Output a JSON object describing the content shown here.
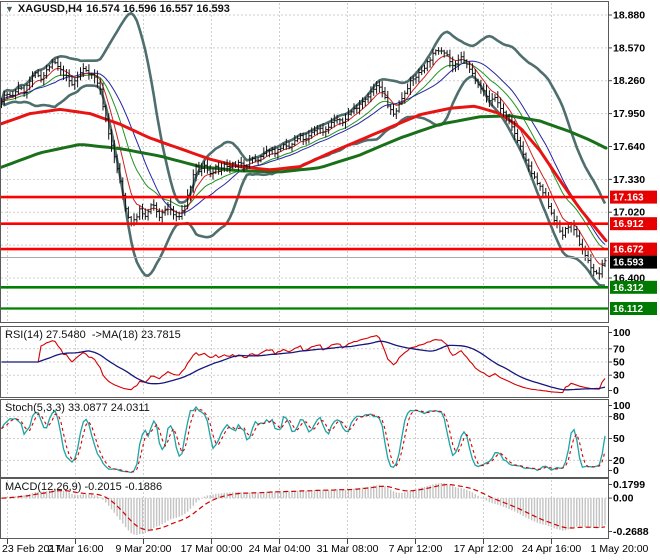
{
  "window": {
    "title": "XAGUSD,H4",
    "quotes": "16.574 16.596 16.557 16.593"
  },
  "colors": {
    "bg": "#ffffff",
    "grid": "#cfcfcf",
    "bar": "#141414",
    "bb": "#4f6e6e",
    "thin_blue": "#2626a6",
    "thin_green": "#22921f",
    "thin_red": "#d02020",
    "slow_red": "#e81414",
    "slow_green": "#1a701a",
    "res_line": "#ff0000",
    "sup_line": "#008000",
    "tag_red": "#e60000",
    "tag_green": "#007a00",
    "tag_black": "#000000",
    "cur_line": "#a9a9a9",
    "rsi": "#d40000",
    "rsi_ma": "#16167d",
    "stoch_k": "#1fa3a3",
    "stoch_d": "#d40000",
    "macd_hist": "#c3c3c3",
    "macd_sig": "#d40000",
    "text": "#000000",
    "border": "#5a5a5a"
  },
  "chart_data": {
    "type": "ohlc-bar-multi-panel",
    "symbol": "XAGUSD",
    "timeframe": "H4",
    "price_panel": {
      "bars": {
        "count": 215,
        "spacing_px": 2.82
      },
      "bollinger": {
        "period": 20,
        "deviation": 2.1
      },
      "close_keypoints": [
        [
          0,
          18.06
        ],
        [
          6,
          18.14
        ],
        [
          12,
          18.1
        ],
        [
          18,
          18.2
        ],
        [
          24,
          18.16
        ],
        [
          30,
          18.26
        ],
        [
          36,
          18.33
        ],
        [
          42,
          18.28
        ],
        [
          48,
          18.38
        ],
        [
          54,
          18.44
        ],
        [
          60,
          18.36
        ],
        [
          66,
          18.3
        ],
        [
          72,
          18.22
        ],
        [
          78,
          18.3
        ],
        [
          84,
          18.38
        ],
        [
          90,
          18.33
        ],
        [
          96,
          18.28
        ],
        [
          100,
          18.18
        ],
        [
          104,
          17.98
        ],
        [
          108,
          17.8
        ],
        [
          112,
          17.62
        ],
        [
          116,
          17.48
        ],
        [
          120,
          17.3
        ],
        [
          124,
          17.12
        ],
        [
          128,
          16.98
        ],
        [
          132,
          16.9
        ],
        [
          136,
          16.97
        ],
        [
          140,
          17.05
        ],
        [
          144,
          16.96
        ],
        [
          148,
          17.02
        ],
        [
          152,
          17.1
        ],
        [
          156,
          17.04
        ],
        [
          160,
          16.97
        ],
        [
          164,
          17.03
        ],
        [
          168,
          17.09
        ],
        [
          172,
          17.02
        ],
        [
          176,
          16.96
        ],
        [
          180,
          17.0
        ],
        [
          184,
          17.06
        ],
        [
          188,
          17.18
        ],
        [
          192,
          17.32
        ],
        [
          196,
          17.44
        ],
        [
          200,
          17.4
        ],
        [
          204,
          17.46
        ],
        [
          208,
          17.42
        ],
        [
          212,
          17.38
        ],
        [
          216,
          17.44
        ],
        [
          220,
          17.4
        ],
        [
          224,
          17.46
        ],
        [
          228,
          17.43
        ],
        [
          232,
          17.48
        ],
        [
          236,
          17.44
        ],
        [
          240,
          17.5
        ],
        [
          246,
          17.46
        ],
        [
          252,
          17.53
        ],
        [
          258,
          17.5
        ],
        [
          264,
          17.57
        ],
        [
          270,
          17.62
        ],
        [
          276,
          17.58
        ],
        [
          282,
          17.65
        ],
        [
          288,
          17.62
        ],
        [
          294,
          17.68
        ],
        [
          300,
          17.73
        ],
        [
          306,
          17.7
        ],
        [
          312,
          17.77
        ],
        [
          318,
          17.82
        ],
        [
          324,
          17.78
        ],
        [
          330,
          17.85
        ],
        [
          336,
          17.9
        ],
        [
          342,
          17.86
        ],
        [
          348,
          17.94
        ],
        [
          354,
          17.99
        ],
        [
          360,
          18.05
        ],
        [
          366,
          18.1
        ],
        [
          372,
          18.16
        ],
        [
          378,
          18.22
        ],
        [
          384,
          18.12
        ],
        [
          390,
          17.98
        ],
        [
          394,
          17.94
        ],
        [
          398,
          18.02
        ],
        [
          402,
          18.1
        ],
        [
          406,
          18.18
        ],
        [
          410,
          18.24
        ],
        [
          416,
          18.3
        ],
        [
          422,
          18.36
        ],
        [
          428,
          18.44
        ],
        [
          434,
          18.52
        ],
        [
          440,
          18.56
        ],
        [
          446,
          18.53
        ],
        [
          450,
          18.44
        ],
        [
          454,
          18.38
        ],
        [
          458,
          18.44
        ],
        [
          462,
          18.49
        ],
        [
          466,
          18.42
        ],
        [
          470,
          18.36
        ],
        [
          474,
          18.3
        ],
        [
          478,
          18.24
        ],
        [
          482,
          18.18
        ],
        [
          486,
          18.12
        ],
        [
          490,
          18.06
        ],
        [
          494,
          18.12
        ],
        [
          498,
          18.05
        ],
        [
          502,
          17.98
        ],
        [
          506,
          17.92
        ],
        [
          510,
          17.85
        ],
        [
          514,
          17.78
        ],
        [
          518,
          17.7
        ],
        [
          522,
          17.6
        ],
        [
          526,
          17.5
        ],
        [
          530,
          17.42
        ],
        [
          534,
          17.35
        ],
        [
          538,
          17.28
        ],
        [
          542,
          17.22
        ],
        [
          546,
          17.15
        ],
        [
          550,
          17.05
        ],
        [
          554,
          16.96
        ],
        [
          558,
          16.88
        ],
        [
          562,
          16.8
        ],
        [
          566,
          16.86
        ],
        [
          570,
          16.92
        ],
        [
          574,
          16.84
        ],
        [
          578,
          16.76
        ],
        [
          582,
          16.68
        ],
        [
          586,
          16.6
        ],
        [
          590,
          16.52
        ],
        [
          594,
          16.46
        ],
        [
          598,
          16.42
        ],
        [
          602,
          16.5
        ],
        [
          605,
          16.57
        ],
        [
          607,
          16.59
        ]
      ],
      "ma_slow_red_keypoints": [
        [
          0,
          17.85
        ],
        [
          30,
          17.95
        ],
        [
          60,
          17.99
        ],
        [
          90,
          17.95
        ],
        [
          120,
          17.85
        ],
        [
          150,
          17.72
        ],
        [
          180,
          17.62
        ],
        [
          210,
          17.52
        ],
        [
          240,
          17.45
        ],
        [
          270,
          17.42
        ],
        [
          300,
          17.45
        ],
        [
          330,
          17.58
        ],
        [
          360,
          17.7
        ],
        [
          390,
          17.82
        ],
        [
          420,
          17.94
        ],
        [
          450,
          18.0
        ],
        [
          475,
          18.02
        ],
        [
          500,
          17.95
        ],
        [
          520,
          17.82
        ],
        [
          540,
          17.6
        ],
        [
          560,
          17.32
        ],
        [
          580,
          17.05
        ],
        [
          595,
          16.88
        ],
        [
          607,
          16.74
        ]
      ],
      "ma_slow_green_keypoints": [
        [
          0,
          17.44
        ],
        [
          40,
          17.58
        ],
        [
          80,
          17.66
        ],
        [
          120,
          17.62
        ],
        [
          160,
          17.55
        ],
        [
          200,
          17.45
        ],
        [
          240,
          17.41
        ],
        [
          280,
          17.4
        ],
        [
          320,
          17.44
        ],
        [
          360,
          17.56
        ],
        [
          400,
          17.72
        ],
        [
          440,
          17.85
        ],
        [
          480,
          17.92
        ],
        [
          510,
          17.93
        ],
        [
          540,
          17.88
        ],
        [
          570,
          17.78
        ],
        [
          590,
          17.7
        ],
        [
          607,
          17.62
        ]
      ],
      "axis_values": [
        18.88,
        18.57,
        18.26,
        17.95,
        17.64,
        17.33,
        17.02,
        16.71,
        16.4
      ],
      "axis_labels": [
        "18.880",
        "18.570",
        "18.260",
        "17.950",
        "17.640",
        "17.330",
        "17.020",
        null,
        "16.400"
      ],
      "hlines": [
        {
          "value": 17.163,
          "label": "17.163",
          "role": "resistance",
          "w": 2.6
        },
        {
          "value": 16.912,
          "label": "16.912",
          "role": "resistance",
          "w": 2.6
        },
        {
          "value": 16.672,
          "label": "16.672",
          "role": "resistance",
          "w": 2.6
        },
        {
          "value": 16.312,
          "label": "16.312",
          "role": "support",
          "w": 2.6
        },
        {
          "value": 16.112,
          "label": "16.112",
          "role": "support",
          "w": 2.2
        }
      ],
      "current_price": {
        "value": 16.593,
        "label": "16.593"
      }
    },
    "rsi_panel": {
      "label": "RSI(14) 27.5480  ->MA(18) 23.7815",
      "period": 14,
      "ma_period": 18,
      "grid_values": [
        70,
        50,
        30
      ],
      "axis_labels": [
        "100",
        "70",
        "50",
        "30",
        "0"
      ],
      "last_values": {
        "rsi": 27.548,
        "ma": 23.7815
      }
    },
    "stoch_panel": {
      "label": "Stoch(5,3,3) 33.0877 24.0311",
      "k": 5,
      "d": 3,
      "slowing": 3,
      "grid_values": [
        80,
        50,
        20
      ],
      "axis_labels": [
        "100",
        "80",
        "50",
        "20",
        "0"
      ],
      "last_values": {
        "k": 33.0877,
        "d": 24.0311
      }
    },
    "macd_panel": {
      "label": "MACD(12,26,9) -0.2015 -0.1886",
      "fast": 12,
      "slow": 26,
      "signal": 9,
      "axis_labels": {
        "max": "0.1799",
        "zero": "0.00",
        "min": "-0.2688"
      },
      "last_values": {
        "macd": -0.2015,
        "signal": -0.1886
      }
    },
    "time_axis": {
      "labels": [
        "23 Feb 2017",
        "2 Mar 16:00",
        "9 Mar 20:00",
        "17 Mar 00:00",
        "24 Mar 04:00",
        "31 Mar 08:00",
        "7 Apr 12:00",
        "17 Apr 12:00",
        "24 Apr 16:00",
        "1 May 20:00"
      ]
    }
  }
}
